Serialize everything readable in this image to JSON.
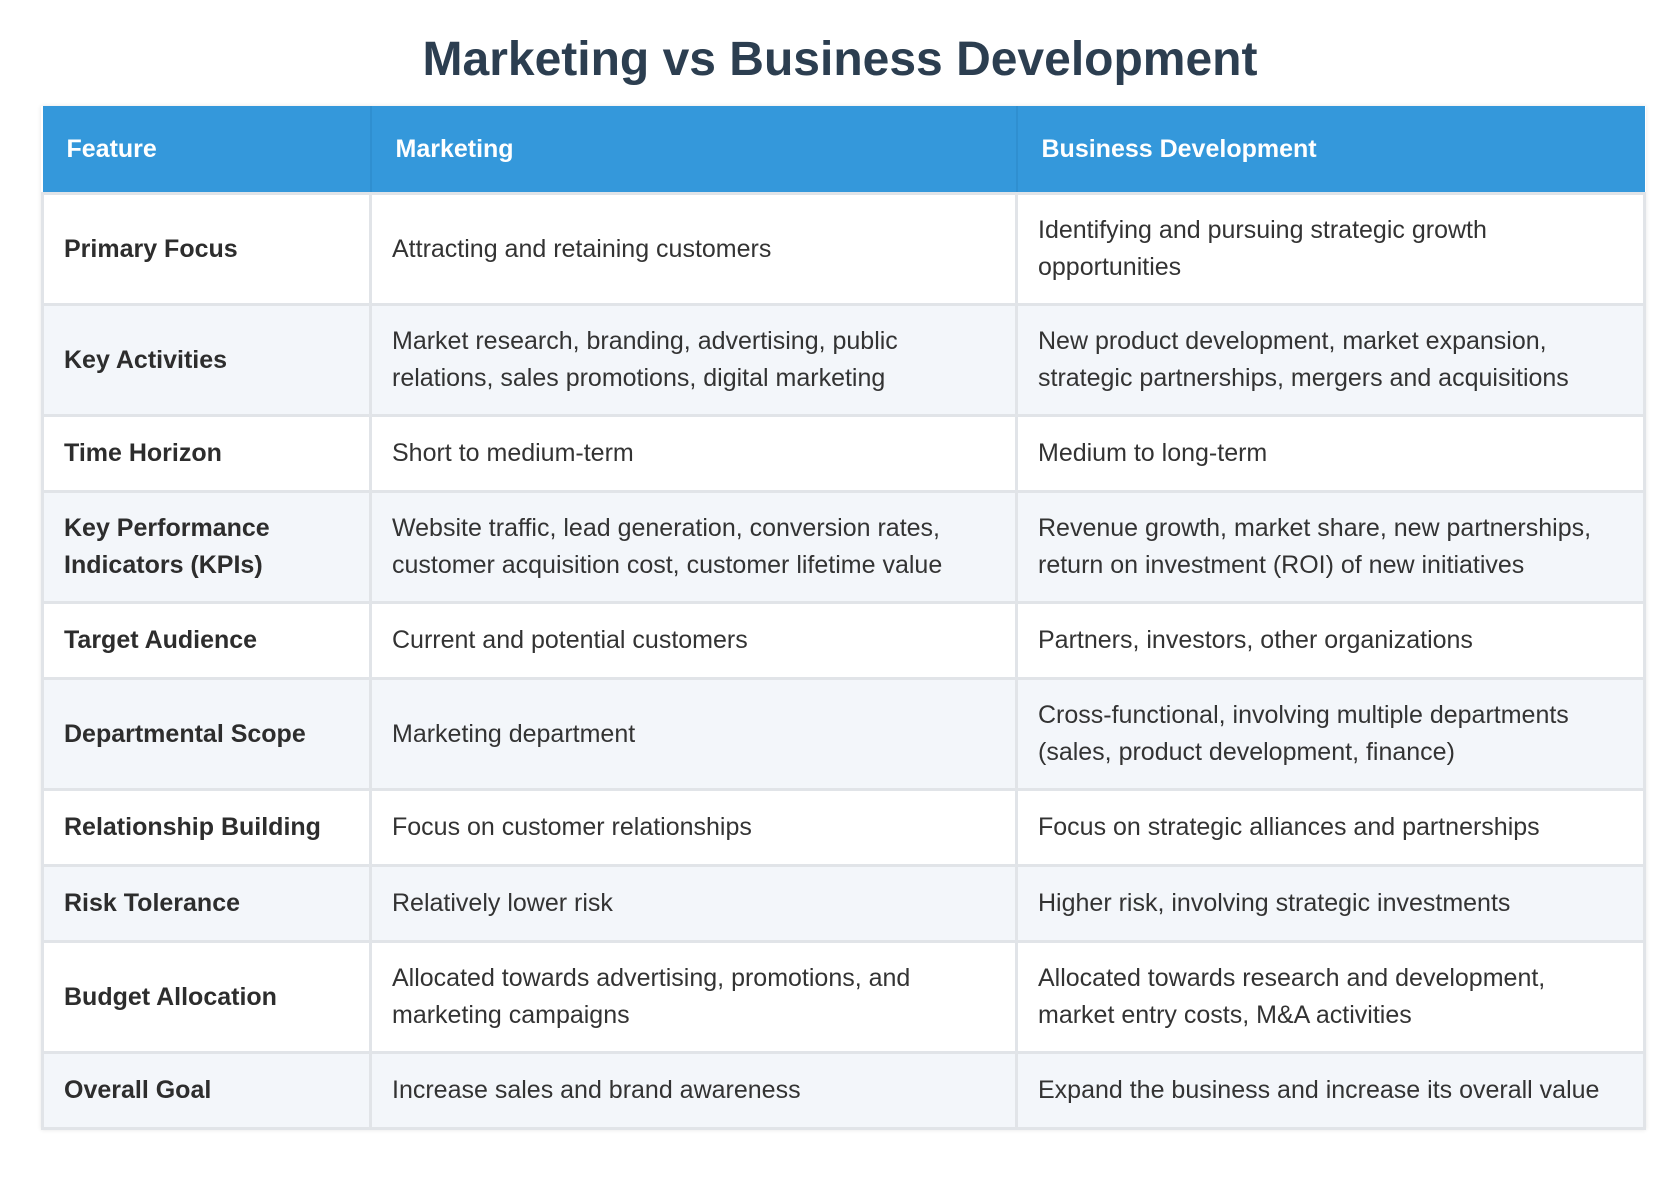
{
  "title": "Marketing vs Business Development",
  "table": {
    "headers": [
      "Feature",
      "Marketing",
      "Business Development"
    ],
    "rows": [
      {
        "feature": "Primary Focus",
        "marketing": "Attracting and retaining customers",
        "bizdev": "Identifying and pursuing strategic growth opportunities"
      },
      {
        "feature": "Key Activities",
        "marketing": "Market research, branding, advertising, public relations, sales promotions, digital marketing",
        "bizdev": "New product development, market expansion, strategic partnerships, mergers and acquisitions"
      },
      {
        "feature": "Time Horizon",
        "marketing": "Short to medium-term",
        "bizdev": "Medium to long-term"
      },
      {
        "feature": "Key Performance Indicators (KPIs)",
        "marketing": "Website traffic, lead generation, conversion rates, customer acquisition cost, customer lifetime value",
        "bizdev": "Revenue growth, market share, new partnerships, return on investment (ROI) of new initiatives"
      },
      {
        "feature": "Target Audience",
        "marketing": "Current and potential customers",
        "bizdev": "Partners, investors, other organizations"
      },
      {
        "feature": "Departmental Scope",
        "marketing": "Marketing department",
        "bizdev": "Cross-functional, involving multiple departments (sales, product development, finance)"
      },
      {
        "feature": "Relationship Building",
        "marketing": "Focus on customer relationships",
        "bizdev": "Focus on strategic alliances and partnerships"
      },
      {
        "feature": "Risk Tolerance",
        "marketing": "Relatively lower risk",
        "bizdev": "Higher risk, involving strategic investments"
      },
      {
        "feature": "Budget Allocation",
        "marketing": "Allocated towards advertising, promotions, and marketing campaigns",
        "bizdev": "Allocated towards research and development, market entry costs, M&A activities"
      },
      {
        "feature": "Overall Goal",
        "marketing": "Increase sales and brand awareness",
        "bizdev": "Expand the business and increase its overall value"
      }
    ]
  },
  "colors": {
    "header_bg": "#3498db",
    "title_text": "#2c3e50",
    "row_alt_bg": "#f3f6fa",
    "border": "#e1e4e8"
  }
}
